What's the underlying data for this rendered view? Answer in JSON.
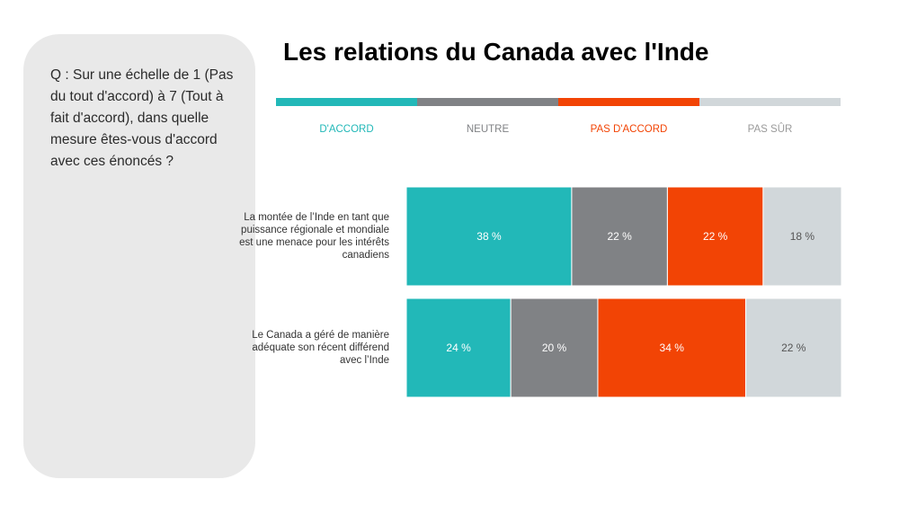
{
  "question": "Q : Sur une échelle de 1 (Pas du tout d'accord) à 7 (Tout à fait d'accord), dans quelle mesure êtes-vous d'accord avec ces énoncés ?",
  "chart_data": {
    "type": "bar",
    "orientation": "horizontal",
    "stacked": true,
    "title": "Les relations du Canada avec l'Inde",
    "legend_position": "top",
    "categories": [
      "La montée de l’Inde en tant que puissance régionale et mondiale est une menace pour les intérêts canadiens",
      "Le Canada a géré de manière adéquate son récent différend avec l’Inde"
    ],
    "series": [
      {
        "name": "D'ACCORD",
        "values": [
          38,
          24
        ],
        "labels": [
          "38 %",
          "24 %"
        ],
        "color": "#22b8b8",
        "legend_color": "#22b8b8",
        "label_color": "#ffffff"
      },
      {
        "name": "NEUTRE",
        "values": [
          22,
          20
        ],
        "labels": [
          "22 %",
          "20 %"
        ],
        "color": "#808285",
        "legend_color": "#808285",
        "label_color": "#ffffff"
      },
      {
        "name": "PAS D'ACCORD",
        "values": [
          22,
          34
        ],
        "labels": [
          "22 %",
          "34 %"
        ],
        "color": "#f24405",
        "legend_color": "#f24405",
        "label_color": "#ffffff"
      },
      {
        "name": "PAS SÛR",
        "values": [
          18,
          22
        ],
        "labels": [
          "18 %",
          "22 %"
        ],
        "color": "#d1d7da",
        "legend_color": "#9a9a9a",
        "label_color": "#555555"
      }
    ],
    "xlim": [
      0,
      100
    ],
    "grid": false
  }
}
